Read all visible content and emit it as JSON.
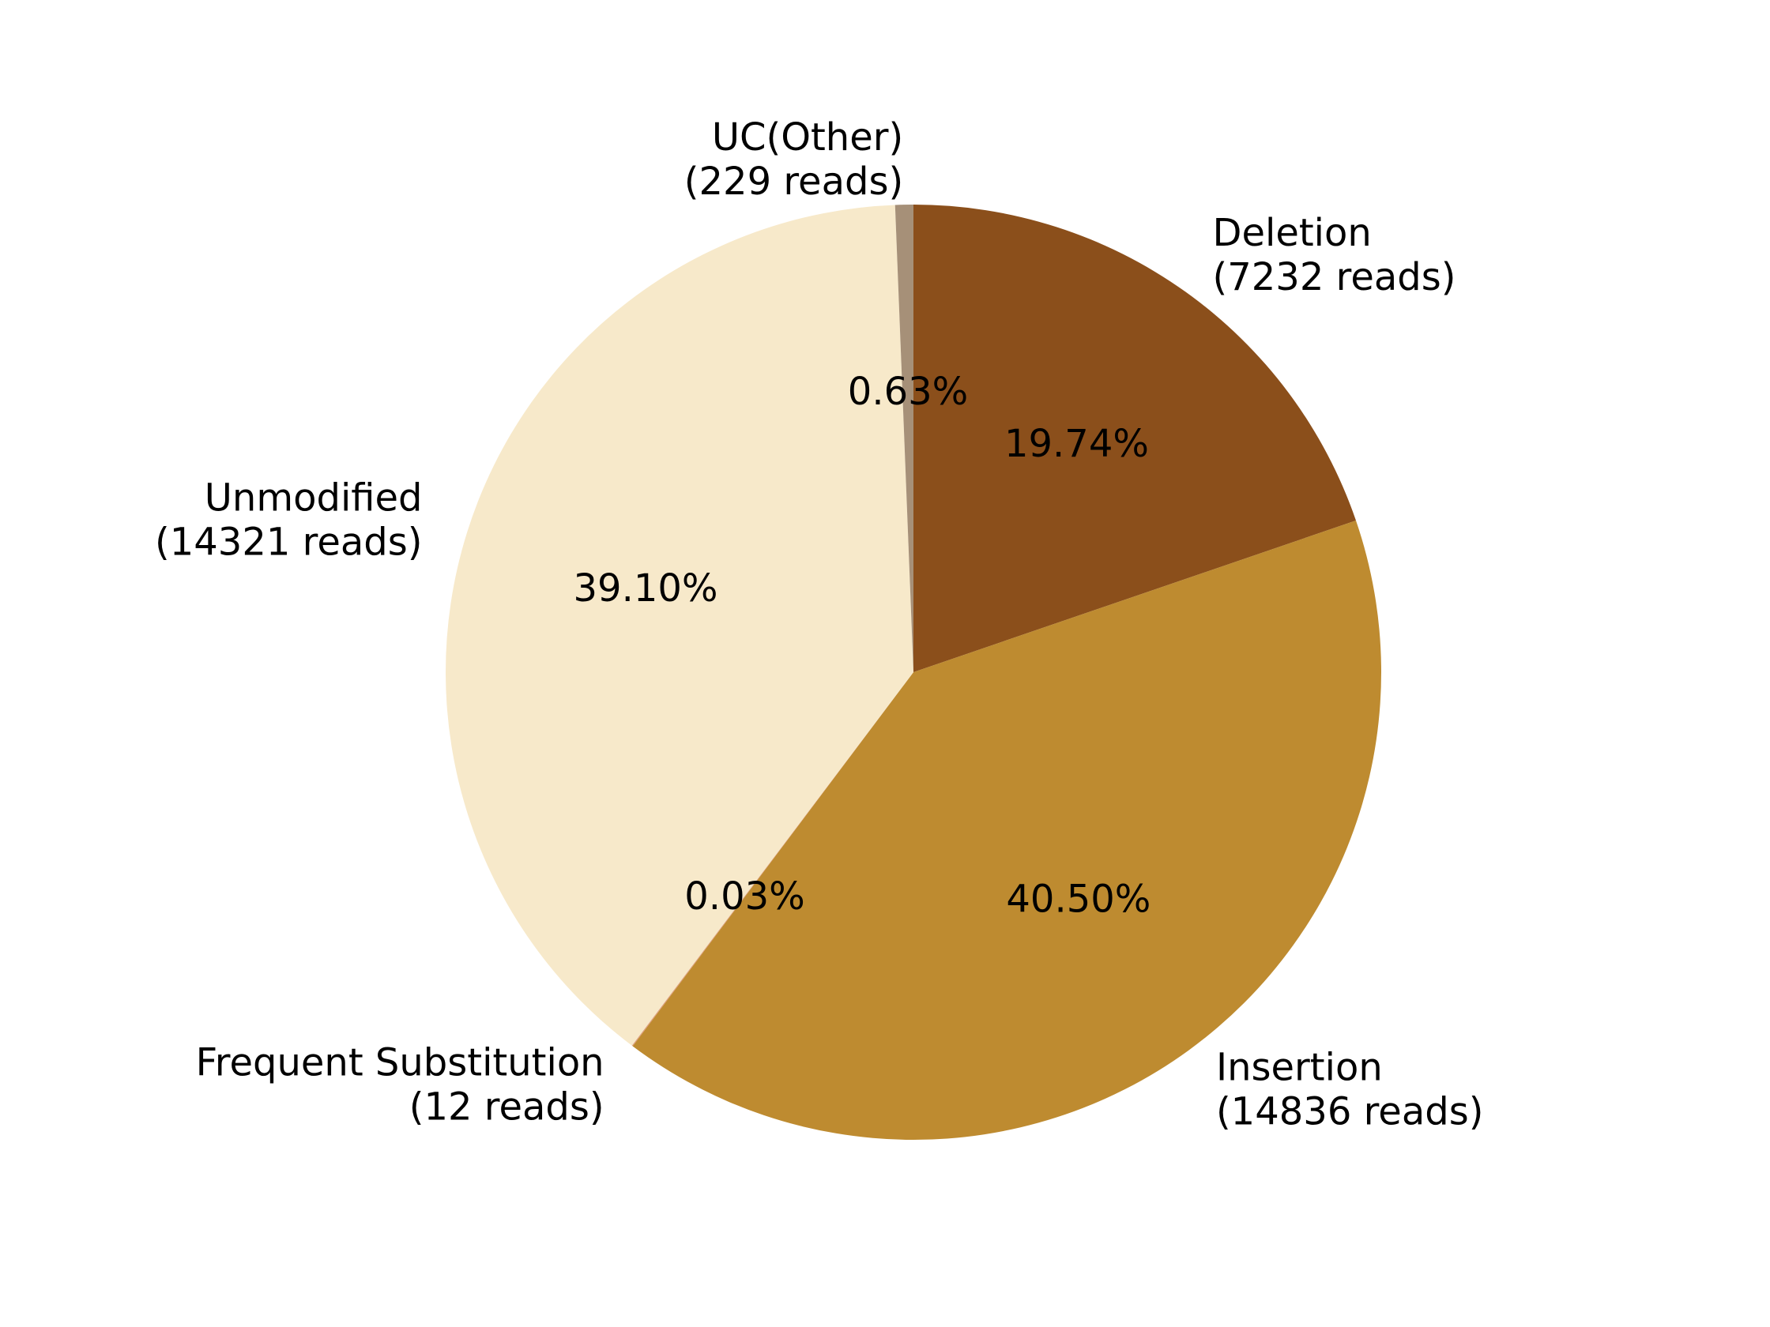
{
  "chart_data": {
    "type": "pie",
    "title": "",
    "start": "top, clockwise",
    "slices": [
      {
        "label": "Deletion",
        "reads": 7232,
        "reads_label": "(7232 reads)",
        "percent": 19.74,
        "pct_label": "19.74%",
        "color": "#8b4f1b"
      },
      {
        "label": "Insertion",
        "reads": 14836,
        "reads_label": "(14836 reads)",
        "percent": 40.5,
        "pct_label": "40.50%",
        "color": "#be8b30"
      },
      {
        "label": "Frequent Substitution",
        "reads": 12,
        "reads_label": "(12 reads)",
        "percent": 0.03,
        "pct_label": "0.03%",
        "color": "#de9e7a"
      },
      {
        "label": "Unmodified",
        "reads": 14321,
        "reads_label": "(14321 reads)",
        "percent": 39.1,
        "pct_label": "39.10%",
        "color": "#f7e9ca"
      },
      {
        "label": "UC(Other)",
        "reads": 229,
        "reads_label": "(229 reads)",
        "percent": 0.63,
        "pct_label": "0.63%",
        "color": "#a69078"
      }
    ]
  }
}
